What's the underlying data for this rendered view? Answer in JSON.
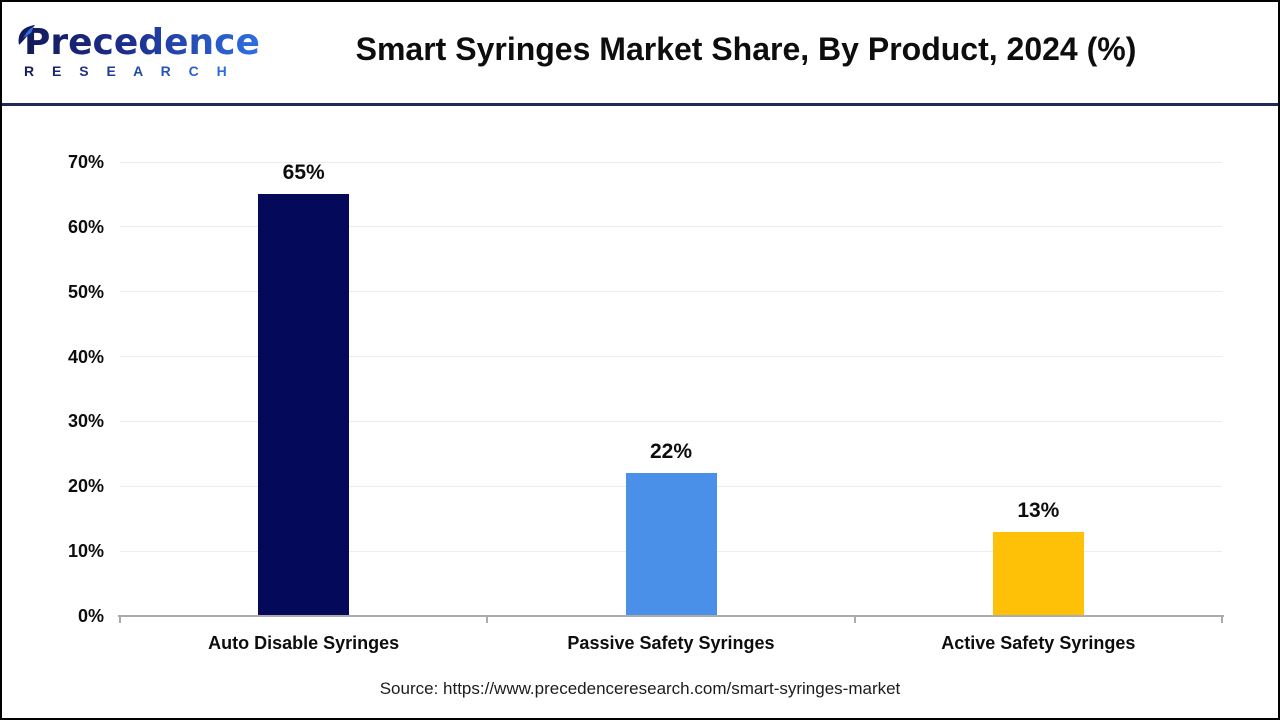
{
  "header": {
    "logo": {
      "brand": "Precedence",
      "sub": "R E S E A R C H"
    },
    "title": "Smart Syringes Market Share, By Product, 2024 (%)"
  },
  "footer": {
    "source": "Source: https://www.precedenceresearch.com/smart-syringes-market"
  },
  "colors": {
    "header_rule_navy": "#1F2A5C",
    "logo_navy": "#141A58",
    "logo_blue": "#2F6FE3",
    "gridline_gray": "#ECECEC",
    "axis_gray": "#ABABAB",
    "text_black": "#0d0d0d"
  },
  "chart_data": {
    "type": "bar",
    "title": "Smart Syringes Market Share, By Product, 2024 (%)",
    "categories": [
      "Auto Disable Syringes",
      "Passive Safety Syringes",
      "Active Safety Syringes"
    ],
    "values": [
      65,
      22,
      13
    ],
    "value_labels": [
      "65%",
      "22%",
      "13%"
    ],
    "bar_colors": [
      "#05095A",
      "#4A90E8",
      "#FFC107"
    ],
    "xlabel": "",
    "ylabel": "",
    "ylim": [
      0,
      70
    ],
    "ytick_step": 10,
    "ytick_labels": [
      "0%",
      "10%",
      "20%",
      "30%",
      "40%",
      "50%",
      "60%",
      "70%"
    ],
    "grid": true,
    "legend": false
  }
}
